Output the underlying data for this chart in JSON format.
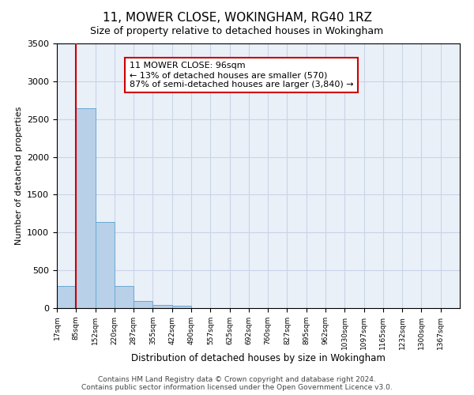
{
  "title": "11, MOWER CLOSE, WOKINGHAM, RG40 1RZ",
  "subtitle": "Size of property relative to detached houses in Wokingham",
  "xlabel": "Distribution of detached houses by size in Wokingham",
  "ylabel": "Number of detached properties",
  "categories": [
    "17sqm",
    "85sqm",
    "152sqm",
    "220sqm",
    "287sqm",
    "355sqm",
    "422sqm",
    "490sqm",
    "557sqm",
    "625sqm",
    "692sqm",
    "760sqm",
    "827sqm",
    "895sqm",
    "962sqm",
    "1030sqm",
    "1097sqm",
    "1165sqm",
    "1232sqm",
    "1300sqm",
    "1367sqm"
  ],
  "values": [
    290,
    2640,
    1140,
    295,
    95,
    40,
    28,
    0,
    0,
    0,
    0,
    0,
    0,
    0,
    0,
    0,
    0,
    0,
    0,
    0,
    0
  ],
  "bar_color": "#b8d0e8",
  "bar_edge_color": "#6aaad4",
  "vline_index": 1.0,
  "property_line_label": "11 MOWER CLOSE: 96sqm",
  "annotation_line1": "← 13% of detached houses are smaller (570)",
  "annotation_line2": "87% of semi-detached houses are larger (3,840) →",
  "annotation_box_color": "#ffffff",
  "annotation_box_edge_color": "#cc0000",
  "vline_color": "#cc0000",
  "ylim": [
    0,
    3500
  ],
  "yticks": [
    0,
    500,
    1000,
    1500,
    2000,
    2500,
    3000,
    3500
  ],
  "grid_color": "#c8d4e8",
  "bg_color": "#eaf0f8",
  "footnote1": "Contains HM Land Registry data © Crown copyright and database right 2024.",
  "footnote2": "Contains public sector information licensed under the Open Government Licence v3.0.",
  "title_fontsize": 11,
  "subtitle_fontsize": 9,
  "annot_fontsize": 8,
  "footnote_fontsize": 6.5
}
